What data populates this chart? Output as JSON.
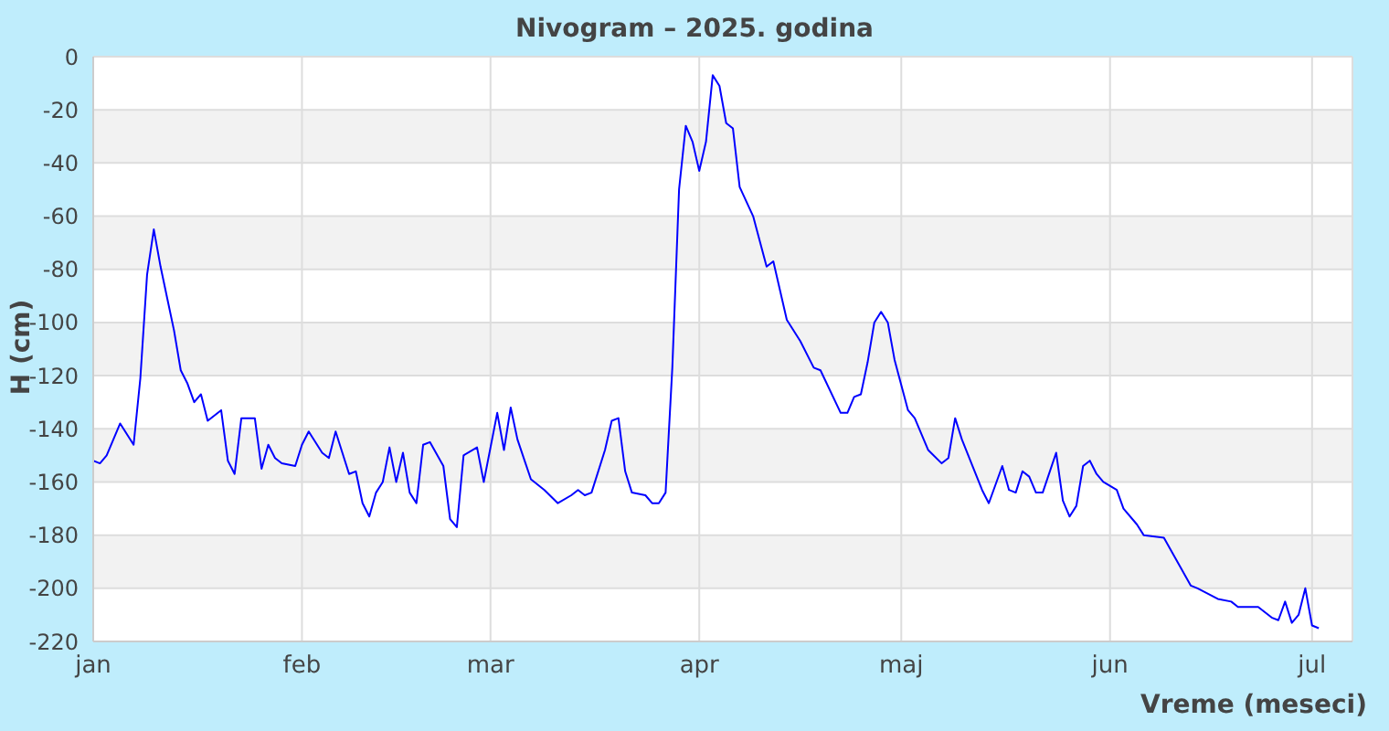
{
  "chart_data": {
    "type": "line",
    "title": "Nivogram – 2025. godina",
    "xlabel": "Vreme (meseci)",
    "ylabel": "H (cm)",
    "x": [
      "2025-01-01",
      "2025-01-02",
      "2025-01-03",
      "2025-01-05",
      "2025-01-07",
      "2025-01-08",
      "2025-01-09",
      "2025-01-10",
      "2025-01-11",
      "2025-01-12",
      "2025-01-13",
      "2025-01-14",
      "2025-01-15",
      "2025-01-16",
      "2025-01-17",
      "2025-01-18",
      "2025-01-20",
      "2025-01-21",
      "2025-01-22",
      "2025-01-23",
      "2025-01-25",
      "2025-01-26",
      "2025-01-27",
      "2025-01-28",
      "2025-01-29",
      "2025-01-31",
      "2025-02-01",
      "2025-02-02",
      "2025-02-04",
      "2025-02-05",
      "2025-02-06",
      "2025-02-08",
      "2025-02-09",
      "2025-02-10",
      "2025-02-11",
      "2025-02-12",
      "2025-02-13",
      "2025-02-14",
      "2025-02-15",
      "2025-02-16",
      "2025-02-17",
      "2025-02-18",
      "2025-02-19",
      "2025-02-20",
      "2025-02-22",
      "2025-02-23",
      "2025-02-24",
      "2025-02-25",
      "2025-02-27",
      "2025-02-28",
      "2025-03-02",
      "2025-03-03",
      "2025-03-04",
      "2025-03-05",
      "2025-03-07",
      "2025-03-09",
      "2025-03-11",
      "2025-03-13",
      "2025-03-14",
      "2025-03-15",
      "2025-03-16",
      "2025-03-18",
      "2025-03-19",
      "2025-03-20",
      "2025-03-21",
      "2025-03-22",
      "2025-03-24",
      "2025-03-25",
      "2025-03-26",
      "2025-03-27",
      "2025-03-28",
      "2025-03-29",
      "2025-03-30",
      "2025-03-31",
      "2025-04-01",
      "2025-04-02",
      "2025-04-03",
      "2025-04-04",
      "2025-04-05",
      "2025-04-06",
      "2025-04-07",
      "2025-04-09",
      "2025-04-11",
      "2025-04-12",
      "2025-04-14",
      "2025-04-16",
      "2025-04-18",
      "2025-04-19",
      "2025-04-22",
      "2025-04-23",
      "2025-04-24",
      "2025-04-25",
      "2025-04-26",
      "2025-04-27",
      "2025-04-28",
      "2025-04-29",
      "2025-04-30",
      "2025-05-02",
      "2025-05-03",
      "2025-05-05",
      "2025-05-07",
      "2025-05-08",
      "2025-05-09",
      "2025-05-10",
      "2025-05-13",
      "2025-05-14",
      "2025-05-16",
      "2025-05-17",
      "2025-05-18",
      "2025-05-19",
      "2025-05-20",
      "2025-05-21",
      "2025-05-22",
      "2025-05-24",
      "2025-05-25",
      "2025-05-26",
      "2025-05-27",
      "2025-05-28",
      "2025-05-29",
      "2025-05-30",
      "2025-05-31",
      "2025-06-02",
      "2025-06-03",
      "2025-06-05",
      "2025-06-06",
      "2025-06-09",
      "2025-06-11",
      "2025-06-13",
      "2025-06-14",
      "2025-06-17",
      "2025-06-19",
      "2025-06-20",
      "2025-06-23",
      "2025-06-25",
      "2025-06-26",
      "2025-06-27",
      "2025-06-28",
      "2025-06-29",
      "2025-06-30",
      "2025-07-01",
      "2025-07-02"
    ],
    "series": [
      {
        "color": "#0000ff",
        "values": [
          -152,
          -153,
          -150,
          -138,
          -146,
          -121,
          -82,
          -65,
          -79,
          -91,
          -103,
          -118,
          -123,
          -130,
          -127,
          -137,
          -133,
          -152,
          -157,
          -136,
          -136,
          -155,
          -146,
          -151,
          -153,
          -154,
          -146,
          -141,
          -149,
          -151,
          -141,
          -157,
          -156,
          -168,
          -173,
          -164,
          -160,
          -147,
          -160,
          -149,
          -164,
          -168,
          -146,
          -145,
          -154,
          -174,
          -177,
          -150,
          -147,
          -160,
          -134,
          -148,
          -132,
          -144,
          -159,
          -163,
          -168,
          -165,
          -163,
          -165,
          -164,
          -148,
          -137,
          -136,
          -156,
          -164,
          -165,
          -168,
          -168,
          -164,
          -117,
          -50,
          -26,
          -32,
          -43,
          -32,
          -7,
          -11,
          -25,
          -27,
          -49,
          -60,
          -79,
          -77,
          -99,
          -107,
          -117,
          -118,
          -134,
          -134,
          -128,
          -127,
          -115,
          -100,
          -96,
          -100,
          -114,
          -133,
          -136,
          -148,
          -153,
          -151,
          -136,
          -144,
          -163,
          -168,
          -154,
          -163,
          -164,
          -156,
          -158,
          -164,
          -164,
          -149,
          -167,
          -173,
          -169,
          -154,
          -152,
          -157,
          -160,
          -163,
          -170,
          -176,
          -180,
          -181,
          -190,
          -199,
          -200,
          -204,
          -205,
          -207,
          -207,
          -211,
          -212,
          -205,
          -213,
          -210,
          -200,
          -214,
          -215
        ]
      }
    ],
    "xlim": [
      "2025-01-01",
      "2025-07-07"
    ],
    "xticks": [
      {
        "value": "2025-01-01",
        "label": "jan"
      },
      {
        "value": "2025-02-01",
        "label": "feb"
      },
      {
        "value": "2025-03-01",
        "label": "mar"
      },
      {
        "value": "2025-04-01",
        "label": "apr"
      },
      {
        "value": "2025-05-01",
        "label": "maj"
      },
      {
        "value": "2025-06-01",
        "label": "jun"
      },
      {
        "value": "2025-07-01",
        "label": "jul"
      }
    ],
    "ylim": [
      -220,
      0
    ],
    "yticks": [
      -220,
      -200,
      -180,
      -160,
      -140,
      -120,
      -100,
      -80,
      -60,
      -40,
      -20,
      0
    ],
    "grid": true,
    "marker": "none",
    "line_style": "solid"
  }
}
